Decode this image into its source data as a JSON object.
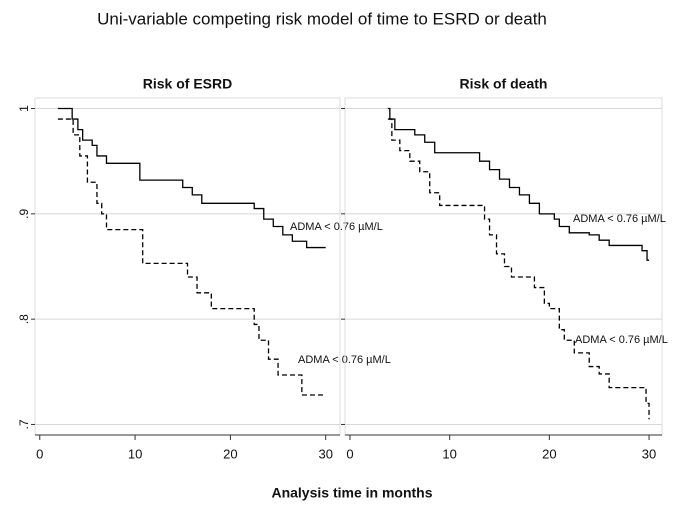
{
  "title": "Uni-variable competing risk model of time to ESRD or death",
  "xlabel": "Analysis time in months",
  "chart_data": [
    {
      "type": "line",
      "title": "Risk of ESRD",
      "step": true,
      "grid": true,
      "xlim": [
        -0.5,
        31.5
      ],
      "ylim": [
        0.69,
        1.01
      ],
      "xticks": [
        0,
        10,
        20,
        30
      ],
      "yticks": [
        {
          "value": 0.7,
          "label": ".7"
        },
        {
          "value": 0.8,
          "label": ".8"
        },
        {
          "value": 0.9,
          "label": ".9"
        },
        1
      ],
      "yticklabels": true,
      "annotations": [
        "ADMA < 0.76 µM/L",
        "ADMA < 0.76 µM/L"
      ],
      "series": [
        {
          "color": "#000000",
          "dash": false,
          "x": [
            1.9,
            3.4,
            4,
            4.5,
            5.5,
            6,
            7,
            10.5,
            15,
            16,
            17,
            18,
            22.5,
            23.5,
            24.5,
            25.5,
            26.5,
            28,
            30
          ],
          "values": [
            1,
            0.99,
            0.98,
            0.97,
            0.965,
            0.955,
            0.948,
            0.932,
            0.925,
            0.918,
            0.91,
            0.91,
            0.905,
            0.895,
            0.888,
            0.88,
            0.874,
            0.868,
            0.868
          ]
        },
        {
          "color": "#000000",
          "dash": true,
          "x": [
            1.9,
            3.5,
            4.2,
            5,
            6,
            6.5,
            7,
            10.8,
            15.5,
            16.5,
            18,
            22.5,
            23,
            24,
            25,
            27.5,
            30
          ],
          "values": [
            0.99,
            0.975,
            0.955,
            0.93,
            0.91,
            0.9,
            0.885,
            0.853,
            0.84,
            0.825,
            0.81,
            0.795,
            0.78,
            0.762,
            0.747,
            0.728,
            0.728
          ]
        }
      ]
    },
    {
      "type": "line",
      "title": "Risk of death",
      "step": true,
      "grid": true,
      "xlim": [
        -0.5,
        31.3
      ],
      "ylim": [
        0.69,
        1.01
      ],
      "xticks": [
        0,
        10,
        20,
        30
      ],
      "yticks": [
        0.7,
        0.8,
        0.9,
        1
      ],
      "yticklabels": false,
      "annotations": [
        "ADMA < 0.76 µM/L",
        "ADMA < 0.76 µM/L"
      ],
      "series": [
        {
          "color": "#000000",
          "dash": false,
          "x": [
            3.8,
            4,
            4.5,
            6.5,
            7.5,
            8.5,
            13,
            14,
            15,
            16,
            17,
            18,
            19,
            20.5,
            21,
            22,
            24,
            25,
            26,
            29.3,
            29.8,
            30
          ],
          "values": [
            1,
            0.99,
            0.98,
            0.975,
            0.968,
            0.958,
            0.95,
            0.942,
            0.933,
            0.925,
            0.918,
            0.91,
            0.9,
            0.895,
            0.888,
            0.882,
            0.88,
            0.875,
            0.87,
            0.865,
            0.856,
            0.856
          ]
        },
        {
          "color": "#000000",
          "dash": true,
          "x": [
            3.8,
            4.2,
            5,
            6,
            7,
            8,
            9,
            13.5,
            14,
            14.7,
            15.5,
            16.2,
            18.5,
            19.5,
            20,
            21,
            21.5,
            22.5,
            24,
            25,
            26,
            29.7,
            30
          ],
          "values": [
            0.99,
            0.97,
            0.96,
            0.95,
            0.94,
            0.92,
            0.908,
            0.895,
            0.88,
            0.862,
            0.85,
            0.84,
            0.83,
            0.815,
            0.81,
            0.79,
            0.78,
            0.768,
            0.755,
            0.748,
            0.735,
            0.72,
            0.705
          ]
        }
      ]
    }
  ]
}
